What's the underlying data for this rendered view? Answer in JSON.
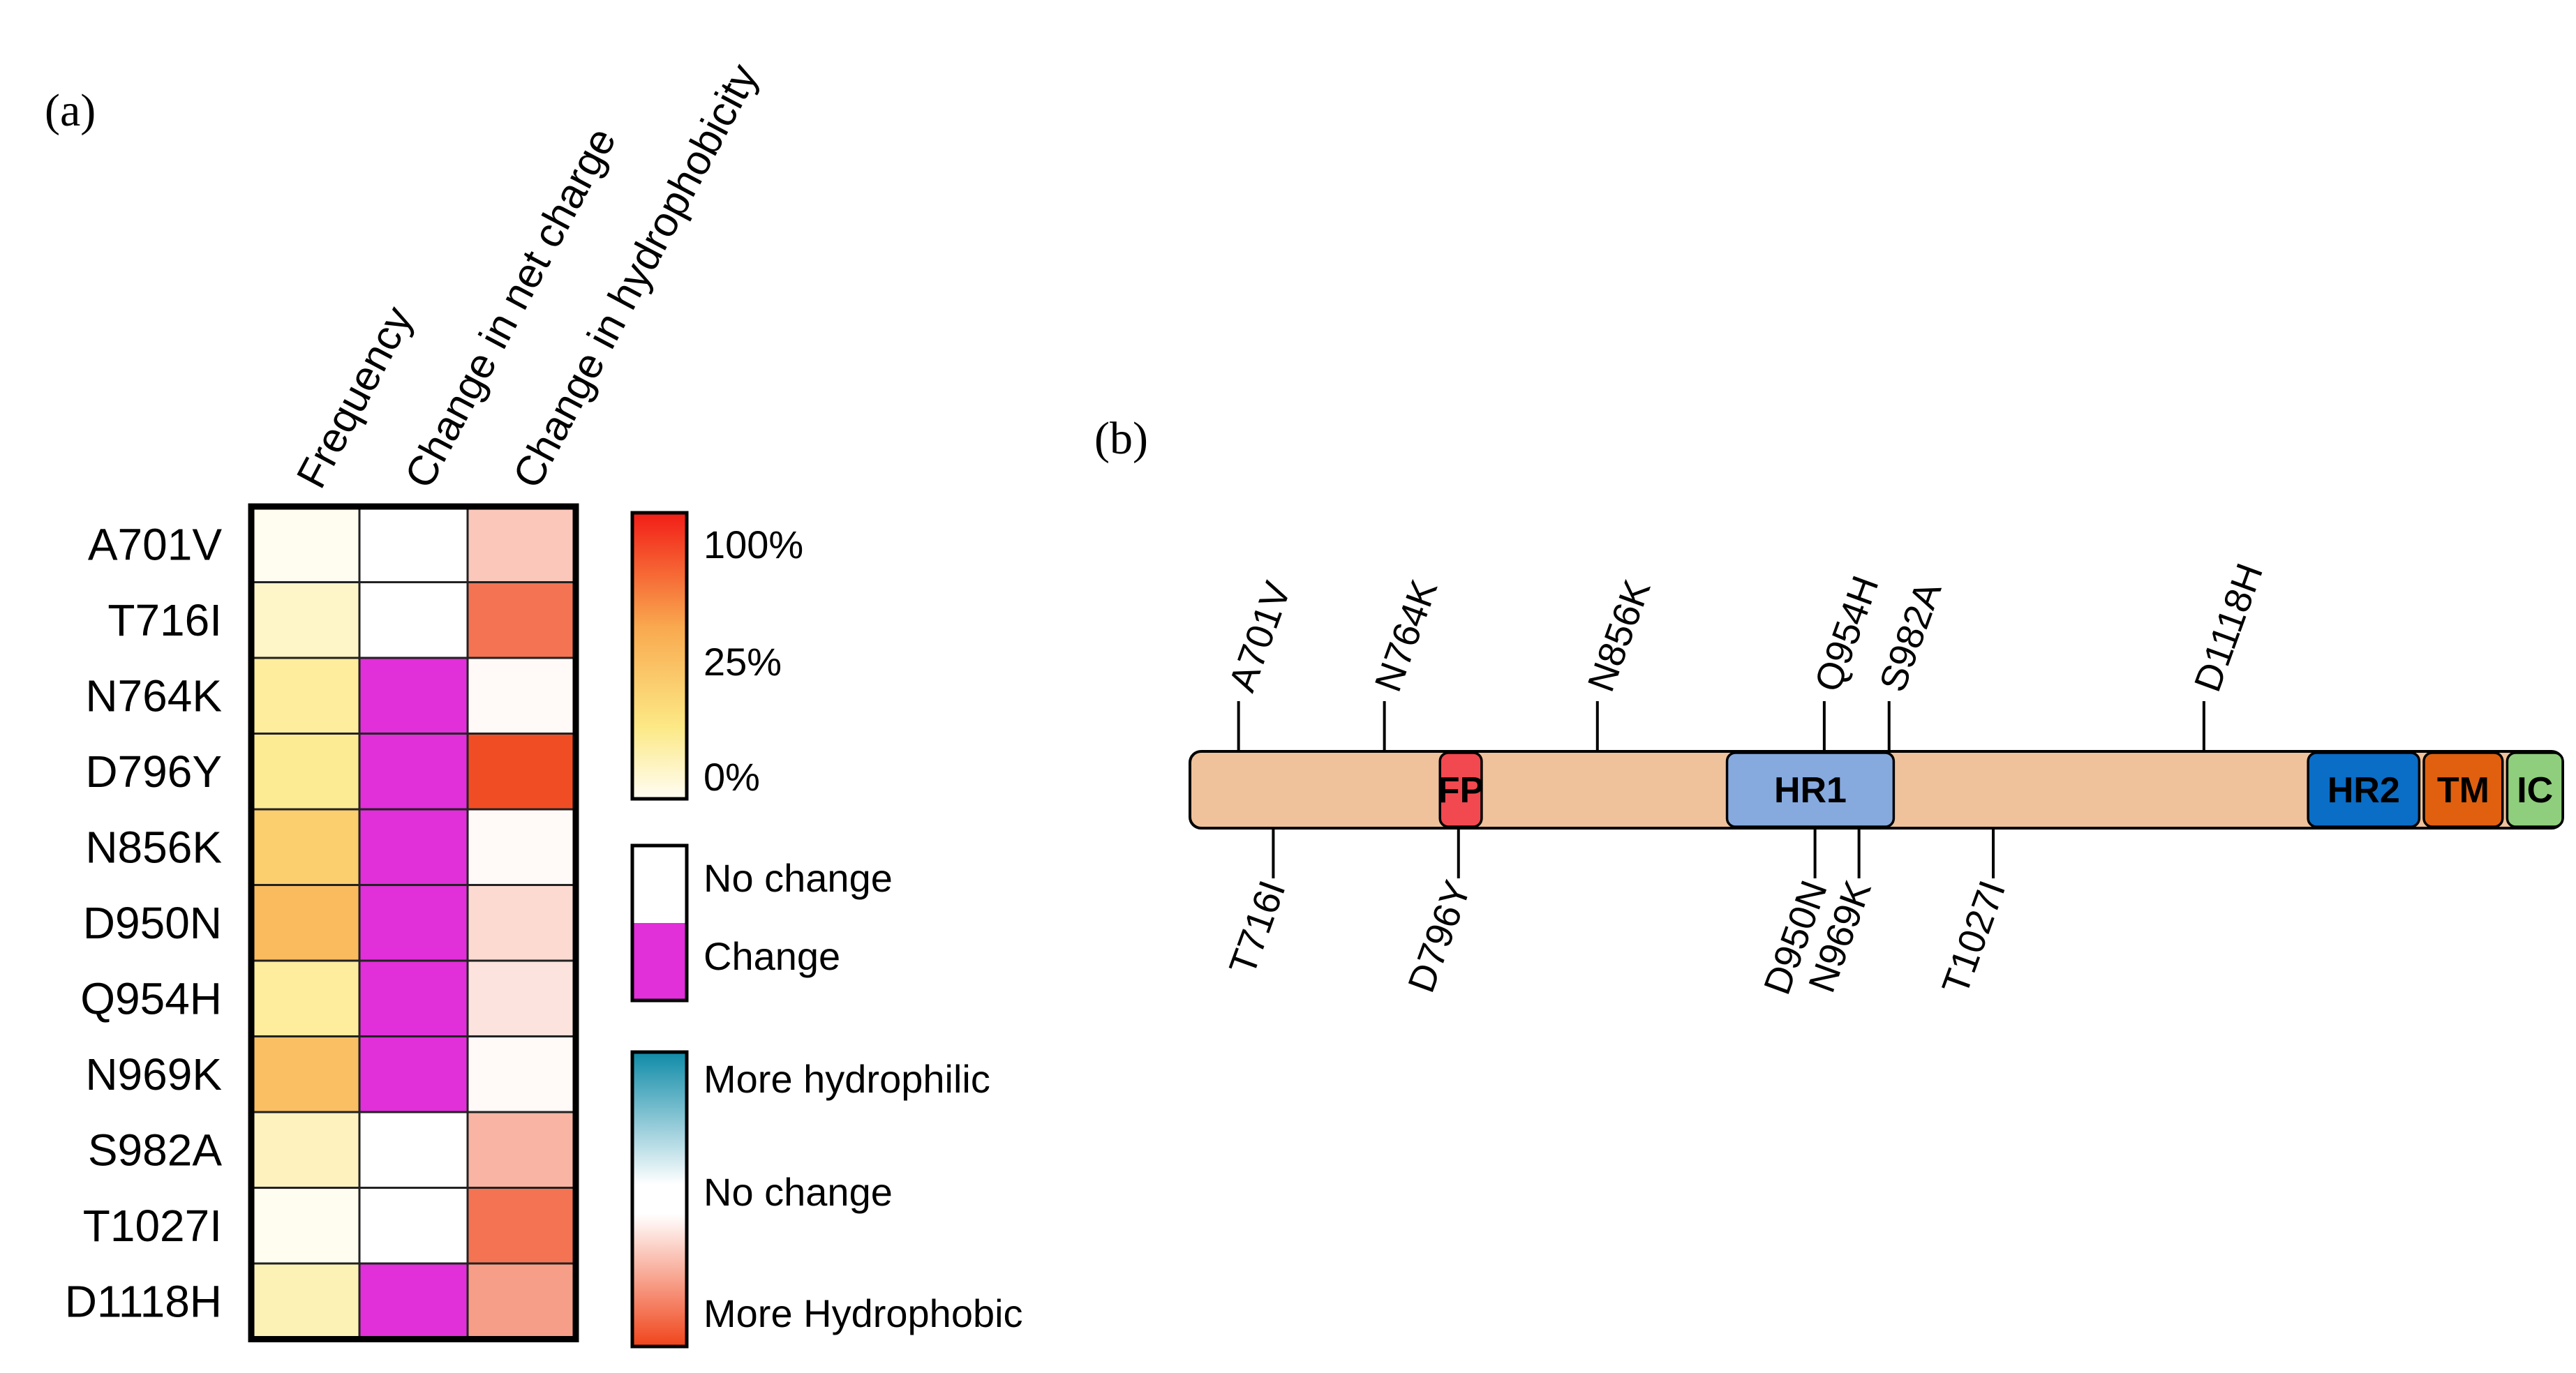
{
  "panel_a_label": "(a)",
  "panel_b_label": "(b)",
  "chart_data": [
    {
      "type": "heatmap",
      "title": "",
      "columns": [
        "Frequency",
        "Change in net charge",
        "Change in hydrophobicity"
      ],
      "rows": [
        "A701V",
        "T716I",
        "N764K",
        "D796Y",
        "N856K",
        "D950N",
        "Q954H",
        "N969K",
        "S982A",
        "T1027I",
        "D1118H"
      ],
      "frequency_pct": [
        1,
        10,
        20,
        22,
        40,
        50,
        20,
        48,
        12,
        1,
        14
      ],
      "net_charge_change": [
        0,
        0,
        1,
        1,
        1,
        1,
        1,
        1,
        0,
        0,
        1
      ],
      "hydrophobicity_change": [
        0.3,
        0.75,
        0.03,
        0.95,
        0.03,
        0.2,
        0.15,
        0.03,
        0.4,
        0.75,
        0.52
      ],
      "legends": {
        "frequency": {
          "labels": [
            "100%",
            "25%",
            "0%"
          ],
          "stops": [
            100,
            25,
            0
          ]
        },
        "charge": {
          "labels": [
            "No change",
            "Change"
          ]
        },
        "hydrophobicity": {
          "labels": [
            "More hydrophilic",
            "No change",
            "More Hydrophobic"
          ]
        }
      },
      "colors": {
        "freq_low": "#fffdf4",
        "freq_25": "#fce986",
        "freq_mid": "#f9a94f",
        "freq_high": "#f21d17",
        "change": "#e12fd9",
        "no_change": "#ffffff",
        "hydrophobic": "#f0441a",
        "hydrophilic": "#0f8ba8"
      }
    },
    {
      "type": "diagram",
      "title": "",
      "protein_range": [
        680,
        1273
      ],
      "domains": [
        {
          "label": "FP",
          "start": 788,
          "end": 806,
          "color": "#f1494f"
        },
        {
          "label": "HR1",
          "start": 912,
          "end": 984,
          "color": "#86aade"
        },
        {
          "label": "HR2",
          "start": 1163,
          "end": 1211,
          "color": "#0a6dc6"
        },
        {
          "label": "TM",
          "start": 1213,
          "end": 1247,
          "color": "#e0600f"
        },
        {
          "label": "IC",
          "start": 1249,
          "end": 1273,
          "color": "#8fce7c"
        }
      ],
      "mutations_above": [
        {
          "label": "A701V",
          "pos": 701
        },
        {
          "label": "N764K",
          "pos": 764
        },
        {
          "label": "N856K",
          "pos": 856
        },
        {
          "label": "Q954H",
          "pos": 954
        },
        {
          "label": "S982A",
          "pos": 982
        },
        {
          "label": "D1118H",
          "pos": 1118
        }
      ],
      "mutations_below": [
        {
          "label": "T716I",
          "pos": 716
        },
        {
          "label": "D796Y",
          "pos": 796
        },
        {
          "label": "D950N",
          "pos": 950
        },
        {
          "label": "N969K",
          "pos": 969
        },
        {
          "label": "T1027I",
          "pos": 1027
        }
      ],
      "backbone_color": "#efc29b"
    }
  ]
}
